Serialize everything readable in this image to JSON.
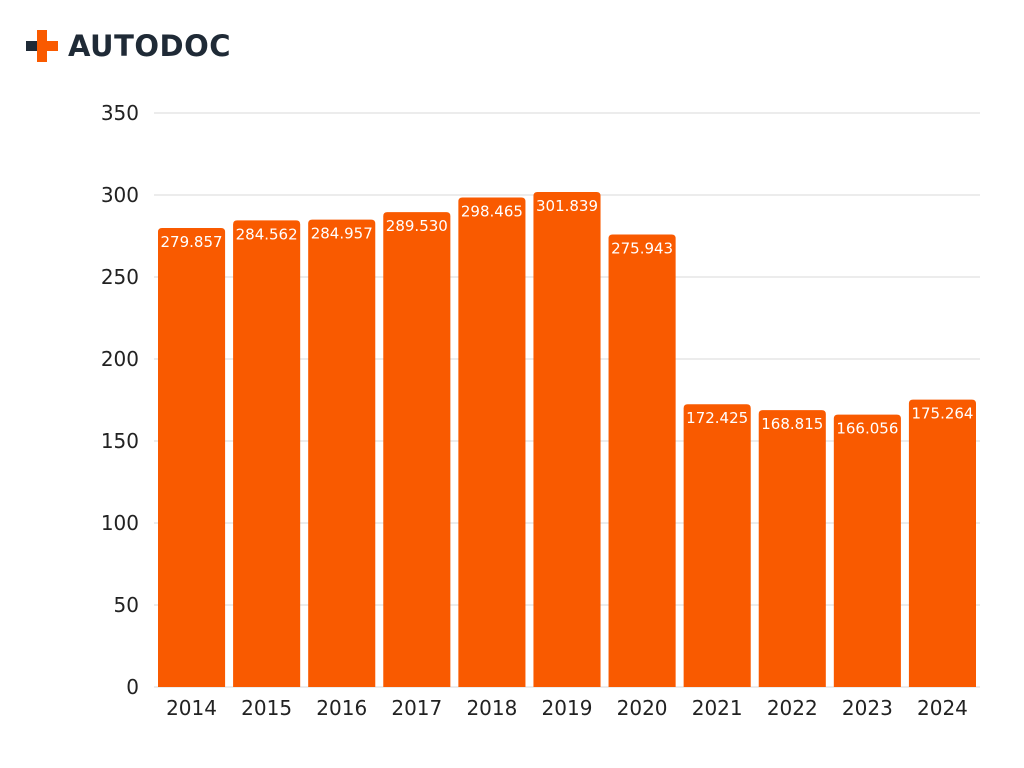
{
  "brand": {
    "name": "AUTODOC",
    "accent": "#F95A00",
    "text_color": "#1F2A36",
    "icon": "plus-icon"
  },
  "chart_data": {
    "type": "bar",
    "categories": [
      "2014",
      "2015",
      "2016",
      "2017",
      "2018",
      "2019",
      "2020",
      "2021",
      "2022",
      "2023",
      "2024"
    ],
    "values": [
      279.857,
      284.562,
      284.957,
      289.53,
      298.465,
      301.839,
      275.943,
      172.425,
      168.815,
      166.056,
      175.264
    ],
    "data_labels": [
      "279.857",
      "284.562",
      "284.957",
      "289.530",
      "298.465",
      "301.839",
      "275.943",
      "172.425",
      "168.815",
      "166.056",
      "175.264"
    ],
    "yticks": [
      0,
      50,
      100,
      150,
      200,
      250,
      300,
      350
    ],
    "ylim": [
      0,
      350
    ],
    "title": "",
    "xlabel": "",
    "ylabel": "",
    "grid": true,
    "legend": "none",
    "bar_color": "#F95A00",
    "grid_color": "#D9D9D9",
    "label_color": "#FFFFFF"
  }
}
